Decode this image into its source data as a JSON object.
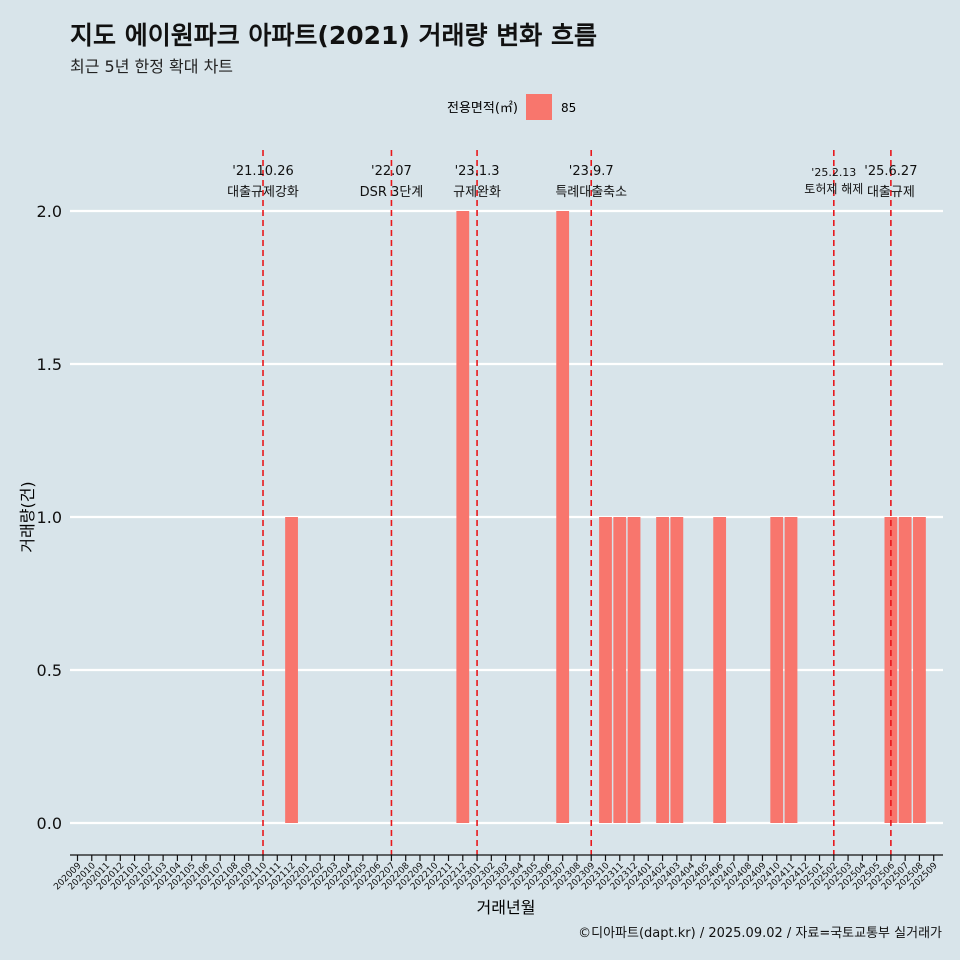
{
  "header": {
    "title": "지도 에이원파크 아파트(2021) 거래량 변화 흐름",
    "subtitle": "최근 5년 한정 확대 차트"
  },
  "caption": "©디아파트(dapt.kr) / 2025.09.02 / 자료=국토교통부 실거래가",
  "colors": {
    "background": "#d8e4ea",
    "bar": "#f8766d",
    "vline": "#e8171c",
    "grid": "#ffffff"
  },
  "chart_data": {
    "type": "bar",
    "xlabel": "거래년월",
    "ylabel": "거래량(건)",
    "ylim": [
      0,
      2
    ],
    "yticks": [
      "0.0",
      "0.5",
      "1.0",
      "1.5",
      "2.0"
    ],
    "legend": {
      "title": "전용면적(㎡)",
      "placement": "top",
      "entries": [
        "85"
      ]
    },
    "grid": true,
    "categories": [
      "202009",
      "202010",
      "202011",
      "202012",
      "202101",
      "202102",
      "202103",
      "202104",
      "202105",
      "202106",
      "202107",
      "202108",
      "202109",
      "202110",
      "202111",
      "202112",
      "202201",
      "202202",
      "202203",
      "202204",
      "202205",
      "202206",
      "202207",
      "202208",
      "202209",
      "202210",
      "202211",
      "202212",
      "202301",
      "202302",
      "202303",
      "202304",
      "202305",
      "202306",
      "202307",
      "202308",
      "202309",
      "202310",
      "202311",
      "202312",
      "202401",
      "202402",
      "202403",
      "202404",
      "202405",
      "202406",
      "202407",
      "202408",
      "202409",
      "202410",
      "202411",
      "202412",
      "202501",
      "202502",
      "202503",
      "202504",
      "202505",
      "202506",
      "202507",
      "202508",
      "202509"
    ],
    "series": [
      {
        "name": "85",
        "values": [
          0,
          0,
          0,
          0,
          0,
          0,
          0,
          0,
          0,
          0,
          0,
          0,
          0,
          0,
          0,
          1,
          0,
          0,
          0,
          0,
          0,
          0,
          0,
          0,
          0,
          0,
          0,
          2,
          0,
          0,
          0,
          0,
          0,
          0,
          2,
          0,
          0,
          1,
          1,
          1,
          0,
          1,
          1,
          0,
          0,
          1,
          0,
          0,
          0,
          1,
          1,
          0,
          0,
          0,
          0,
          0,
          0,
          1,
          1,
          1,
          0
        ]
      }
    ],
    "annotations": [
      {
        "date": "'21.10.26",
        "label": "대출규제강화",
        "at": "202110"
      },
      {
        "date": "'22.07",
        "label": "DSR 3단계",
        "at": "202207"
      },
      {
        "date": "'23.1.3",
        "label": "규제완화",
        "at": "202301"
      },
      {
        "date": "'23.9.7",
        "label": "특례대출축소",
        "at": "202309"
      },
      {
        "date": "'25.2.13",
        "label": "토허제 해제",
        "at": "202502"
      },
      {
        "date": "'25.6.27",
        "label": "대출규제",
        "at": "202506"
      }
    ]
  }
}
